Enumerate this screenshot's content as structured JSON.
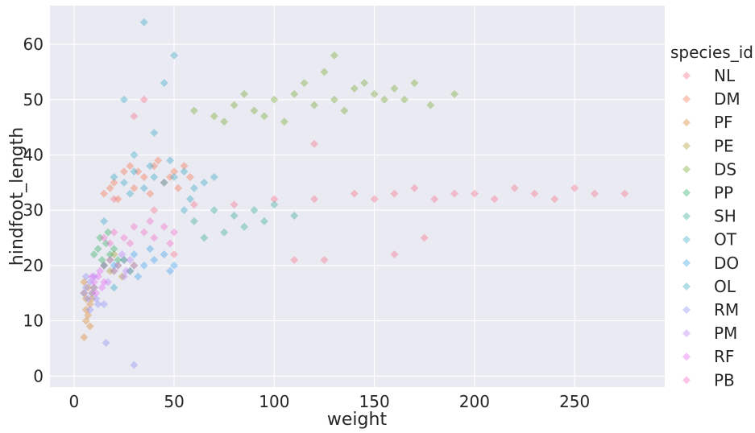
{
  "chart_data": {
    "type": "scatter",
    "xlabel": "weight",
    "ylabel": "hindfoot_length",
    "xlim": [
      -12,
      295
    ],
    "ylim": [
      -2,
      67
    ],
    "x_ticks": [
      0,
      50,
      100,
      150,
      200,
      250
    ],
    "y_ticks": [
      0,
      10,
      20,
      30,
      40,
      50,
      60
    ],
    "grid": true,
    "marker": "diamond",
    "marker_alpha": 0.4,
    "background": "#eaeaf2",
    "legend": {
      "title": "species_id",
      "placement": "right-outside"
    },
    "series": [
      {
        "name": "NL",
        "color": "#f77189",
        "points": [
          [
            20,
            32
          ],
          [
            40,
            30
          ],
          [
            60,
            31
          ],
          [
            80,
            31
          ],
          [
            100,
            32
          ],
          [
            120,
            32
          ],
          [
            140,
            33
          ],
          [
            150,
            32
          ],
          [
            160,
            33
          ],
          [
            170,
            34
          ],
          [
            180,
            32
          ],
          [
            190,
            33
          ],
          [
            200,
            33
          ],
          [
            210,
            32
          ],
          [
            220,
            34
          ],
          [
            230,
            33
          ],
          [
            240,
            32
          ],
          [
            250,
            34
          ],
          [
            260,
            33
          ],
          [
            275,
            33
          ],
          [
            50,
            22
          ],
          [
            110,
            21
          ],
          [
            125,
            21
          ],
          [
            160,
            22
          ],
          [
            175,
            25
          ],
          [
            120,
            42
          ],
          [
            30,
            47
          ],
          [
            35,
            50
          ]
        ]
      },
      {
        "name": "DM",
        "color": "#f7754f",
        "points": [
          [
            15,
            33
          ],
          [
            20,
            35
          ],
          [
            25,
            37
          ],
          [
            30,
            34
          ],
          [
            35,
            36
          ],
          [
            40,
            38
          ],
          [
            45,
            35
          ],
          [
            50,
            37
          ],
          [
            55,
            38
          ],
          [
            22,
            32
          ],
          [
            18,
            34
          ],
          [
            28,
            38
          ],
          [
            42,
            39
          ],
          [
            48,
            36
          ],
          [
            52,
            34
          ],
          [
            38,
            33
          ],
          [
            32,
            37
          ],
          [
            58,
            36
          ]
        ]
      },
      {
        "name": "PF",
        "color": "#dc8932",
        "points": [
          [
            5,
            15
          ],
          [
            6,
            14
          ],
          [
            7,
            16
          ],
          [
            8,
            13
          ],
          [
            9,
            15
          ],
          [
            6,
            12
          ],
          [
            5,
            17
          ],
          [
            7,
            11
          ],
          [
            8,
            9
          ],
          [
            6,
            10
          ],
          [
            5,
            7
          ],
          [
            9,
            14
          ],
          [
            10,
            16
          ]
        ]
      },
      {
        "name": "PE",
        "color": "#ae9d31",
        "points": [
          [
            15,
            20
          ],
          [
            18,
            21
          ],
          [
            20,
            19
          ],
          [
            22,
            20
          ],
          [
            25,
            21
          ],
          [
            28,
            19
          ],
          [
            30,
            20
          ],
          [
            20,
            22
          ],
          [
            24,
            18
          ],
          [
            18,
            19
          ]
        ]
      },
      {
        "name": "DS",
        "color": "#77ab31",
        "points": [
          [
            60,
            48
          ],
          [
            70,
            47
          ],
          [
            80,
            49
          ],
          [
            90,
            48
          ],
          [
            100,
            50
          ],
          [
            110,
            51
          ],
          [
            120,
            49
          ],
          [
            130,
            50
          ],
          [
            140,
            52
          ],
          [
            150,
            51
          ],
          [
            160,
            52
          ],
          [
            170,
            53
          ],
          [
            125,
            55
          ],
          [
            130,
            58
          ],
          [
            95,
            47
          ],
          [
            105,
            46
          ],
          [
            135,
            48
          ],
          [
            145,
            53
          ],
          [
            155,
            50
          ],
          [
            115,
            53
          ],
          [
            75,
            46
          ],
          [
            85,
            51
          ],
          [
            165,
            50
          ],
          [
            190,
            51
          ],
          [
            178,
            49
          ]
        ]
      },
      {
        "name": "PP",
        "color": "#33b166",
        "points": [
          [
            10,
            22
          ],
          [
            12,
            23
          ],
          [
            14,
            21
          ],
          [
            16,
            24
          ],
          [
            18,
            22
          ],
          [
            20,
            23
          ],
          [
            22,
            21
          ],
          [
            15,
            20
          ],
          [
            13,
            25
          ],
          [
            17,
            26
          ]
        ]
      },
      {
        "name": "SH",
        "color": "#36ad98",
        "points": [
          [
            60,
            28
          ],
          [
            70,
            30
          ],
          [
            80,
            29
          ],
          [
            90,
            30
          ],
          [
            100,
            31
          ],
          [
            75,
            26
          ],
          [
            85,
            27
          ],
          [
            65,
            25
          ],
          [
            95,
            28
          ],
          [
            110,
            29
          ]
        ]
      },
      {
        "name": "OT",
        "color": "#38a9c5",
        "points": [
          [
            20,
            36
          ],
          [
            25,
            35
          ],
          [
            30,
            37
          ],
          [
            35,
            34
          ],
          [
            40,
            36
          ],
          [
            45,
            35
          ],
          [
            50,
            36
          ],
          [
            55,
            37
          ],
          [
            60,
            34
          ],
          [
            65,
            35
          ],
          [
            70,
            36
          ],
          [
            28,
            33
          ],
          [
            38,
            38
          ],
          [
            48,
            39
          ],
          [
            58,
            32
          ]
        ]
      },
      {
        "name": "DO",
        "color": "#3ba3ec",
        "points": [
          [
            20,
            20
          ],
          [
            25,
            21
          ],
          [
            30,
            22
          ],
          [
            35,
            20
          ],
          [
            40,
            21
          ],
          [
            45,
            22
          ],
          [
            50,
            20
          ],
          [
            28,
            19
          ],
          [
            38,
            23
          ],
          [
            48,
            19
          ],
          [
            32,
            18
          ]
        ]
      },
      {
        "name": "OL",
        "color": "#38a9c5",
        "points": [
          [
            35,
            64
          ],
          [
            50,
            58
          ],
          [
            45,
            53
          ],
          [
            25,
            50
          ],
          [
            40,
            44
          ],
          [
            30,
            40
          ],
          [
            55,
            30
          ],
          [
            15,
            28
          ],
          [
            20,
            16
          ]
        ]
      },
      {
        "name": "RM",
        "color": "#8f91f4",
        "points": [
          [
            5,
            15
          ],
          [
            6,
            16
          ],
          [
            7,
            14
          ],
          [
            8,
            17
          ],
          [
            9,
            15
          ],
          [
            10,
            16
          ],
          [
            11,
            14
          ],
          [
            12,
            13
          ],
          [
            6,
            18
          ],
          [
            8,
            12
          ],
          [
            10,
            18
          ],
          [
            15,
            13
          ],
          [
            16,
            6
          ],
          [
            30,
            2
          ]
        ]
      },
      {
        "name": "PM",
        "color": "#bb81f4",
        "points": [
          [
            15,
            20
          ],
          [
            18,
            21
          ],
          [
            20,
            19
          ],
          [
            22,
            20
          ],
          [
            25,
            18
          ],
          [
            28,
            21
          ],
          [
            30,
            20
          ],
          [
            17,
            17
          ],
          [
            24,
            22
          ],
          [
            26,
            19
          ]
        ]
      },
      {
        "name": "RF",
        "color": "#e866f4",
        "points": [
          [
            10,
            17
          ],
          [
            12,
            18
          ],
          [
            14,
            16
          ],
          [
            13,
            19
          ],
          [
            11,
            15
          ],
          [
            15,
            17
          ],
          [
            9,
            18
          ]
        ]
      },
      {
        "name": "PB",
        "color": "#f66bc9",
        "points": [
          [
            15,
            25
          ],
          [
            20,
            26
          ],
          [
            25,
            25
          ],
          [
            30,
            27
          ],
          [
            35,
            26
          ],
          [
            40,
            25
          ],
          [
            45,
            27
          ],
          [
            50,
            26
          ],
          [
            18,
            24
          ],
          [
            28,
            24
          ],
          [
            38,
            28
          ],
          [
            48,
            24
          ]
        ]
      }
    ]
  }
}
